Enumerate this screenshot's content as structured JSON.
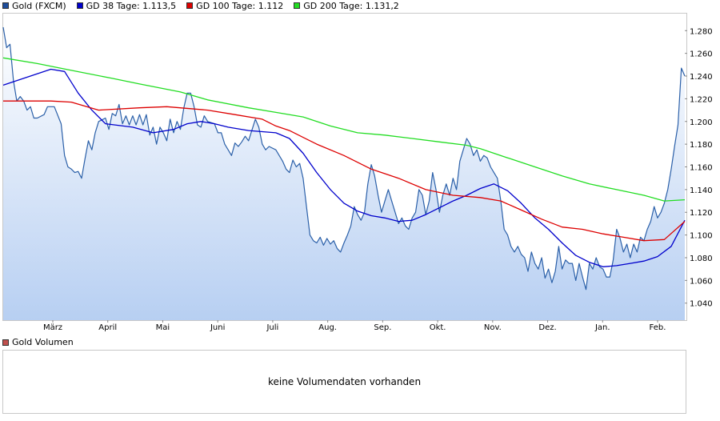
{
  "legend": {
    "gold": {
      "label": "Gold (FXCM)",
      "color": "#1f4e9c"
    },
    "gd38": {
      "label": "GD 38 Tage: 1.113,5",
      "color": "#0000cc"
    },
    "gd100": {
      "label": "GD 100 Tage: 1.112",
      "color": "#dd0000"
    },
    "gd200": {
      "label": "GD 200 Tage: 1.131,2",
      "color": "#22dd22"
    }
  },
  "volume": {
    "label": "Gold Volumen",
    "color": "#c0504d",
    "message": "keine Volumendaten vorhanden"
  },
  "chart_data": {
    "type": "area",
    "title": "",
    "xlabel": "",
    "ylabel": "",
    "x_ticks": [
      "März",
      "April",
      "Mai",
      "Juni",
      "Juli",
      "Aug.",
      "Sep.",
      "Okt.",
      "Nov.",
      "Dez.",
      "Jan.",
      "Feb."
    ],
    "y_ticks": [
      "1.280",
      "1.260",
      "1.240",
      "1.220",
      "1.200",
      "1.180",
      "1.160",
      "1.140",
      "1.120",
      "1.100",
      "1.080",
      "1.060",
      "1.040"
    ],
    "ylim": [
      1025,
      1295
    ],
    "x_range": [
      0,
      100
    ],
    "grid": false,
    "series": [
      {
        "name": "Gold (FXCM)",
        "color": "#2a5fa8",
        "fill": true,
        "points": [
          [
            0,
            1283
          ],
          [
            0.5,
            1265
          ],
          [
            1,
            1268
          ],
          [
            1.5,
            1236
          ],
          [
            2,
            1218
          ],
          [
            2.5,
            1222
          ],
          [
            3,
            1218
          ],
          [
            3.5,
            1210
          ],
          [
            4,
            1213
          ],
          [
            4.5,
            1203
          ],
          [
            5,
            1203
          ],
          [
            6,
            1206
          ],
          [
            6.5,
            1213
          ],
          [
            7.5,
            1213
          ],
          [
            8.5,
            1198
          ],
          [
            9,
            1170
          ],
          [
            9.5,
            1160
          ],
          [
            10,
            1158
          ],
          [
            10.5,
            1155
          ],
          [
            11,
            1156
          ],
          [
            11.5,
            1150
          ],
          [
            12,
            1167
          ],
          [
            12.5,
            1183
          ],
          [
            13,
            1175
          ],
          [
            13.5,
            1190
          ],
          [
            14,
            1200
          ],
          [
            15,
            1203
          ],
          [
            15.5,
            1193
          ],
          [
            16,
            1207
          ],
          [
            16.5,
            1205
          ],
          [
            17,
            1215
          ],
          [
            17.5,
            1198
          ],
          [
            18,
            1205
          ],
          [
            18.5,
            1197
          ],
          [
            19,
            1205
          ],
          [
            19.5,
            1197
          ],
          [
            20,
            1206
          ],
          [
            20.5,
            1197
          ],
          [
            21,
            1206
          ],
          [
            21.5,
            1188
          ],
          [
            22,
            1195
          ],
          [
            22.5,
            1180
          ],
          [
            23,
            1195
          ],
          [
            23.5,
            1190
          ],
          [
            24,
            1183
          ],
          [
            24.5,
            1202
          ],
          [
            25,
            1190
          ],
          [
            25.5,
            1200
          ],
          [
            26,
            1193
          ],
          [
            26.5,
            1212
          ],
          [
            27,
            1225
          ],
          [
            27.5,
            1225
          ],
          [
            28,
            1213
          ],
          [
            28.5,
            1197
          ],
          [
            29,
            1195
          ],
          [
            29.5,
            1205
          ],
          [
            30,
            1200
          ],
          [
            31,
            1198
          ],
          [
            31.5,
            1190
          ],
          [
            32,
            1190
          ],
          [
            32.5,
            1180
          ],
          [
            33,
            1175
          ],
          [
            33.5,
            1170
          ],
          [
            34,
            1181
          ],
          [
            34.5,
            1178
          ],
          [
            35,
            1182
          ],
          [
            35.5,
            1187
          ],
          [
            36,
            1183
          ],
          [
            37,
            1202
          ],
          [
            37.5,
            1195
          ],
          [
            38,
            1180
          ],
          [
            38.5,
            1175
          ],
          [
            39,
            1178
          ],
          [
            40,
            1175
          ],
          [
            41,
            1165
          ],
          [
            41.5,
            1158
          ],
          [
            42,
            1155
          ],
          [
            42.5,
            1166
          ],
          [
            43,
            1160
          ],
          [
            43.5,
            1163
          ],
          [
            44,
            1150
          ],
          [
            44.5,
            1125
          ],
          [
            45,
            1100
          ],
          [
            45.5,
            1095
          ],
          [
            46,
            1093
          ],
          [
            46.5,
            1098
          ],
          [
            47,
            1091
          ],
          [
            47.5,
            1097
          ],
          [
            48,
            1092
          ],
          [
            48.5,
            1095
          ],
          [
            49,
            1088
          ],
          [
            49.5,
            1085
          ],
          [
            50,
            1093
          ],
          [
            50.5,
            1100
          ],
          [
            51,
            1108
          ],
          [
            51.5,
            1125
          ],
          [
            52,
            1118
          ],
          [
            52.5,
            1113
          ],
          [
            53,
            1120
          ],
          [
            53.5,
            1145
          ],
          [
            54,
            1162
          ],
          [
            54.5,
            1152
          ],
          [
            55,
            1135
          ],
          [
            55.5,
            1120
          ],
          [
            56,
            1130
          ],
          [
            56.5,
            1140
          ],
          [
            57,
            1130
          ],
          [
            57.5,
            1120
          ],
          [
            58,
            1110
          ],
          [
            58.5,
            1115
          ],
          [
            59,
            1108
          ],
          [
            59.5,
            1105
          ],
          [
            60,
            1115
          ],
          [
            60.5,
            1120
          ],
          [
            61,
            1140
          ],
          [
            61.5,
            1135
          ],
          [
            62,
            1118
          ],
          [
            62.5,
            1130
          ],
          [
            63,
            1155
          ],
          [
            63.5,
            1140
          ],
          [
            64,
            1120
          ],
          [
            64.5,
            1135
          ],
          [
            65,
            1145
          ],
          [
            65.5,
            1135
          ],
          [
            66,
            1150
          ],
          [
            66.5,
            1140
          ],
          [
            67,
            1165
          ],
          [
            67.5,
            1175
          ],
          [
            68,
            1185
          ],
          [
            68.5,
            1180
          ],
          [
            69,
            1170
          ],
          [
            69.5,
            1175
          ],
          [
            70,
            1165
          ],
          [
            70.5,
            1170
          ],
          [
            71,
            1168
          ],
          [
            71.5,
            1160
          ],
          [
            72,
            1155
          ],
          [
            72.5,
            1150
          ],
          [
            73,
            1130
          ],
          [
            73.5,
            1105
          ],
          [
            74,
            1100
          ],
          [
            74.5,
            1090
          ],
          [
            75,
            1085
          ],
          [
            75.5,
            1090
          ],
          [
            76,
            1083
          ],
          [
            76.5,
            1080
          ],
          [
            77,
            1068
          ],
          [
            77.5,
            1085
          ],
          [
            78,
            1075
          ],
          [
            78.5,
            1070
          ],
          [
            79,
            1080
          ],
          [
            79.5,
            1062
          ],
          [
            80,
            1070
          ],
          [
            80.5,
            1058
          ],
          [
            81,
            1068
          ],
          [
            81.5,
            1090
          ],
          [
            82,
            1070
          ],
          [
            82.5,
            1078
          ],
          [
            83,
            1075
          ],
          [
            83.5,
            1075
          ],
          [
            84,
            1060
          ],
          [
            84.5,
            1075
          ],
          [
            85,
            1063
          ],
          [
            85.5,
            1052
          ],
          [
            86,
            1075
          ],
          [
            86.5,
            1070
          ],
          [
            87,
            1080
          ],
          [
            87.5,
            1072
          ],
          [
            88,
            1070
          ],
          [
            88.5,
            1063
          ],
          [
            89,
            1063
          ],
          [
            89.5,
            1078
          ],
          [
            90,
            1105
          ],
          [
            90.5,
            1097
          ],
          [
            91,
            1085
          ],
          [
            91.5,
            1092
          ],
          [
            92,
            1080
          ],
          [
            92.5,
            1092
          ],
          [
            93,
            1085
          ],
          [
            93.5,
            1098
          ],
          [
            94,
            1095
          ],
          [
            94.5,
            1105
          ],
          [
            95,
            1112
          ],
          [
            95.5,
            1125
          ],
          [
            96,
            1115
          ],
          [
            96.5,
            1120
          ],
          [
            97,
            1128
          ],
          [
            97.5,
            1140
          ],
          [
            98,
            1158
          ],
          [
            98.5,
            1178
          ],
          [
            99,
            1197
          ],
          [
            99.5,
            1247
          ],
          [
            100,
            1240
          ]
        ]
      },
      {
        "name": "GD 38 Tage",
        "color": "#0000cc",
        "points": [
          [
            0,
            1232
          ],
          [
            4,
            1240
          ],
          [
            7,
            1246
          ],
          [
            9,
            1244
          ],
          [
            11,
            1225
          ],
          [
            13,
            1210
          ],
          [
            15,
            1198
          ],
          [
            19,
            1195
          ],
          [
            22,
            1190
          ],
          [
            25,
            1193
          ],
          [
            27,
            1198
          ],
          [
            29,
            1200
          ],
          [
            31,
            1198
          ],
          [
            33,
            1195
          ],
          [
            36,
            1192
          ],
          [
            40,
            1190
          ],
          [
            42,
            1185
          ],
          [
            44,
            1172
          ],
          [
            46,
            1155
          ],
          [
            48,
            1140
          ],
          [
            50,
            1128
          ],
          [
            52,
            1121
          ],
          [
            54,
            1117
          ],
          [
            56,
            1115
          ],
          [
            58,
            1112
          ],
          [
            60,
            1113
          ],
          [
            62,
            1118
          ],
          [
            64,
            1124
          ],
          [
            66,
            1130
          ],
          [
            68,
            1135
          ],
          [
            70,
            1141
          ],
          [
            72,
            1145
          ],
          [
            74,
            1139
          ],
          [
            76,
            1128
          ],
          [
            78,
            1115
          ],
          [
            80,
            1105
          ],
          [
            82,
            1093
          ],
          [
            84,
            1082
          ],
          [
            86,
            1076
          ],
          [
            88,
            1072
          ],
          [
            90,
            1073
          ],
          [
            92,
            1075
          ],
          [
            94,
            1077
          ],
          [
            96,
            1081
          ],
          [
            98,
            1090
          ],
          [
            100,
            1113
          ]
        ]
      },
      {
        "name": "GD 100 Tage",
        "color": "#dd0000",
        "points": [
          [
            0,
            1218
          ],
          [
            3,
            1218
          ],
          [
            7,
            1218
          ],
          [
            10,
            1217
          ],
          [
            14,
            1210
          ],
          [
            20,
            1212
          ],
          [
            24,
            1213
          ],
          [
            30,
            1210
          ],
          [
            34,
            1206
          ],
          [
            38,
            1202
          ],
          [
            40,
            1196
          ],
          [
            42,
            1192
          ],
          [
            46,
            1180
          ],
          [
            50,
            1170
          ],
          [
            54,
            1158
          ],
          [
            58,
            1150
          ],
          [
            62,
            1140
          ],
          [
            66,
            1135
          ],
          [
            70,
            1133
          ],
          [
            73,
            1130
          ],
          [
            76,
            1122
          ],
          [
            79,
            1114
          ],
          [
            82,
            1107
          ],
          [
            85,
            1105
          ],
          [
            88,
            1101
          ],
          [
            91,
            1098
          ],
          [
            94,
            1095
          ],
          [
            97,
            1096
          ],
          [
            100,
            1112
          ]
        ]
      },
      {
        "name": "GD 200 Tage",
        "color": "#22dd22",
        "points": [
          [
            0,
            1256
          ],
          [
            5,
            1251
          ],
          [
            10,
            1245
          ],
          [
            16,
            1238
          ],
          [
            20,
            1233
          ],
          [
            26,
            1226
          ],
          [
            30,
            1219
          ],
          [
            36,
            1212
          ],
          [
            40,
            1208
          ],
          [
            44,
            1204
          ],
          [
            48,
            1196
          ],
          [
            52,
            1190
          ],
          [
            56,
            1188
          ],
          [
            60,
            1185
          ],
          [
            64,
            1182
          ],
          [
            68,
            1179
          ],
          [
            70,
            1176
          ],
          [
            74,
            1168
          ],
          [
            78,
            1160
          ],
          [
            82,
            1152
          ],
          [
            86,
            1145
          ],
          [
            90,
            1140
          ],
          [
            94,
            1135
          ],
          [
            97,
            1130
          ],
          [
            100,
            1131
          ]
        ]
      }
    ]
  }
}
